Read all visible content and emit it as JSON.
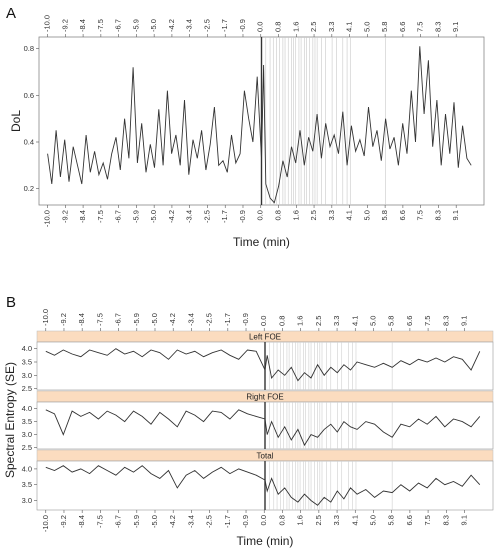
{
  "chart_data": [
    {
      "type": "line",
      "panel_label": "A",
      "xlabel": "Time (min)",
      "ylabel": "DoL",
      "xlim": [
        -10.4,
        10.4
      ],
      "ylim": [
        0.13,
        0.85
      ],
      "x_ticks": [
        "-10.0",
        "-9.2",
        "-8.4",
        "-7.5",
        "-6.7",
        "-5.9",
        "-5.0",
        "-4.2",
        "-3.4",
        "-2.5",
        "-1.7",
        "-0.9",
        "0.0",
        "0.8",
        "1.6",
        "2.5",
        "3.3",
        "4.1",
        "5.0",
        "5.8",
        "6.6",
        "7.5",
        "8.3",
        "9.1"
      ],
      "y_ticks": [
        "0.2",
        "0.4",
        "0.6",
        "0.8"
      ],
      "y_tick_values": [
        0.2,
        0.4,
        0.6,
        0.8
      ],
      "marker_lines": [
        0.0
      ],
      "event_lines": [
        0.2,
        0.4,
        0.55,
        0.7,
        0.85,
        1.0,
        1.1,
        1.25,
        1.4,
        1.5,
        1.6,
        1.75,
        1.85,
        2.0,
        2.1,
        2.25,
        2.4,
        2.5,
        2.6,
        2.8,
        3.0,
        3.3,
        3.5,
        3.8,
        4.0,
        4.15,
        5.8
      ],
      "series": [
        {
          "x": [
            -10.0,
            -9.8,
            -9.6,
            -9.4,
            -9.2,
            -9.0,
            -8.8,
            -8.6,
            -8.4,
            -8.2,
            -8.0,
            -7.8,
            -7.6,
            -7.4,
            -7.2,
            -7.0,
            -6.8,
            -6.6,
            -6.4,
            -6.2,
            -6.0,
            -5.8,
            -5.6,
            -5.4,
            -5.2,
            -5.0,
            -4.8,
            -4.6,
            -4.4,
            -4.2,
            -4.0,
            -3.8,
            -3.6,
            -3.4,
            -3.2,
            -3.0,
            -2.8,
            -2.6,
            -2.4,
            -2.2,
            -2.0,
            -1.8,
            -1.6,
            -1.4,
            -1.2,
            -1.0,
            -0.8,
            -0.6,
            -0.4,
            -0.2,
            0.0,
            0.1,
            0.2,
            0.4,
            0.6,
            0.8,
            1.0,
            1.2,
            1.4,
            1.6,
            1.8,
            2.0,
            2.2,
            2.4,
            2.6,
            2.8,
            3.0,
            3.2,
            3.4,
            3.6,
            3.8,
            4.0,
            4.2,
            4.4,
            4.6,
            4.8,
            5.0,
            5.2,
            5.4,
            5.6,
            5.8,
            6.0,
            6.2,
            6.4,
            6.6,
            6.8,
            7.0,
            7.2,
            7.4,
            7.6,
            7.8,
            8.0,
            8.2,
            8.4,
            8.6,
            8.8,
            9.0,
            9.2,
            9.4,
            9.6,
            9.8
          ],
          "values": [
            0.35,
            0.22,
            0.45,
            0.25,
            0.41,
            0.23,
            0.38,
            0.3,
            0.22,
            0.43,
            0.27,
            0.36,
            0.26,
            0.31,
            0.24,
            0.35,
            0.42,
            0.28,
            0.5,
            0.33,
            0.72,
            0.31,
            0.48,
            0.27,
            0.39,
            0.29,
            0.54,
            0.3,
            0.62,
            0.35,
            0.43,
            0.3,
            0.58,
            0.26,
            0.41,
            0.33,
            0.45,
            0.28,
            0.39,
            0.55,
            0.3,
            0.32,
            0.27,
            0.43,
            0.31,
            0.35,
            0.62,
            0.5,
            0.4,
            0.68,
            0.33,
            0.73,
            0.22,
            0.16,
            0.14,
            0.21,
            0.32,
            0.25,
            0.38,
            0.31,
            0.45,
            0.3,
            0.42,
            0.36,
            0.52,
            0.33,
            0.48,
            0.38,
            0.43,
            0.35,
            0.53,
            0.3,
            0.47,
            0.36,
            0.41,
            0.34,
            0.55,
            0.38,
            0.45,
            0.32,
            0.5,
            0.37,
            0.42,
            0.3,
            0.48,
            0.35,
            0.62,
            0.4,
            0.81,
            0.52,
            0.75,
            0.38,
            0.58,
            0.3,
            0.52,
            0.35,
            0.57,
            0.29,
            0.47,
            0.33,
            0.3
          ]
        }
      ]
    },
    {
      "type": "line",
      "panel_label": "B",
      "xlabel": "Time (min)",
      "ylabel": "Spectral Entropy (SE)",
      "xlim": [
        -10.4,
        10.4
      ],
      "ylim": [
        2.7,
        4.25
      ],
      "x_ticks": [
        "-10.0",
        "-9.2",
        "-8.4",
        "-7.5",
        "-6.7",
        "-5.9",
        "-5.0",
        "-4.2",
        "-3.4",
        "-2.5",
        "-1.7",
        "-0.9",
        "0.0",
        "0.8",
        "1.6",
        "2.5",
        "3.3",
        "4.1",
        "5.0",
        "5.8",
        "6.6",
        "7.5",
        "8.3",
        "9.1"
      ],
      "y_ticks": [
        "4.0",
        "3.5",
        "3.0",
        "2.5"
      ],
      "y_tick_values": [
        4.0,
        3.5,
        3.0,
        2.5
      ],
      "facets": [
        {
          "strip": "Left FOE",
          "ylim": [
            2.45,
            4.25
          ],
          "y_ticks": [
            "4.0",
            "3.5",
            "3.0",
            "2.5"
          ],
          "y_tick_values": [
            4.0,
            3.5,
            3.0,
            2.5
          ],
          "x": [
            -10.0,
            -9.6,
            -9.2,
            -8.8,
            -8.4,
            -8.0,
            -7.6,
            -7.2,
            -6.8,
            -6.4,
            -6.0,
            -5.6,
            -5.2,
            -4.8,
            -4.4,
            -4.0,
            -3.6,
            -3.2,
            -2.8,
            -2.4,
            -2.0,
            -1.6,
            -1.2,
            -0.8,
            -0.4,
            0.0,
            0.1,
            0.3,
            0.6,
            0.9,
            1.2,
            1.5,
            1.8,
            2.1,
            2.4,
            2.7,
            3.0,
            3.3,
            3.6,
            3.9,
            4.2,
            4.6,
            5.0,
            5.4,
            5.8,
            6.2,
            6.6,
            7.0,
            7.4,
            7.8,
            8.2,
            8.6,
            9.0,
            9.4,
            9.8
          ],
          "values": [
            3.9,
            3.75,
            3.95,
            3.8,
            3.7,
            3.95,
            3.85,
            3.75,
            4.0,
            3.8,
            3.9,
            3.7,
            3.95,
            3.85,
            3.6,
            3.95,
            3.8,
            3.9,
            3.7,
            3.85,
            3.95,
            3.75,
            3.6,
            3.95,
            3.9,
            3.2,
            3.75,
            2.9,
            3.2,
            3.0,
            3.3,
            2.8,
            3.1,
            2.9,
            3.4,
            3.0,
            3.3,
            3.1,
            3.4,
            3.2,
            3.5,
            3.4,
            3.3,
            3.45,
            3.3,
            3.55,
            3.4,
            3.6,
            3.5,
            3.65,
            3.5,
            3.7,
            3.6,
            3.2,
            3.9
          ]
        },
        {
          "strip": "Right FOE",
          "ylim": [
            2.45,
            4.25
          ],
          "y_ticks": [
            "4.0",
            "3.5",
            "3.0",
            "2.5"
          ],
          "y_tick_values": [
            4.0,
            3.5,
            3.0,
            2.5
          ],
          "x": [
            -10.0,
            -9.6,
            -9.2,
            -8.8,
            -8.4,
            -8.0,
            -7.6,
            -7.2,
            -6.8,
            -6.4,
            -6.0,
            -5.6,
            -5.2,
            -4.8,
            -4.4,
            -4.0,
            -3.6,
            -3.2,
            -2.8,
            -2.4,
            -2.0,
            -1.6,
            -1.2,
            -0.8,
            -0.4,
            0.0,
            0.1,
            0.3,
            0.6,
            0.9,
            1.2,
            1.5,
            1.8,
            2.1,
            2.4,
            2.7,
            3.0,
            3.3,
            3.6,
            3.9,
            4.2,
            4.6,
            5.0,
            5.4,
            5.8,
            6.2,
            6.6,
            7.0,
            7.4,
            7.8,
            8.2,
            8.6,
            9.0,
            9.4,
            9.8
          ],
          "values": [
            3.95,
            3.8,
            3.0,
            3.9,
            3.7,
            3.85,
            3.6,
            3.9,
            3.75,
            3.5,
            3.9,
            3.7,
            3.4,
            3.85,
            3.6,
            3.3,
            3.9,
            3.75,
            3.5,
            3.9,
            3.85,
            3.6,
            3.95,
            3.8,
            3.7,
            3.6,
            3.0,
            3.5,
            2.9,
            3.3,
            2.8,
            3.2,
            2.6,
            3.0,
            2.9,
            3.2,
            3.4,
            3.1,
            3.5,
            3.3,
            3.2,
            3.5,
            3.4,
            3.1,
            2.9,
            3.4,
            3.3,
            3.6,
            3.4,
            3.7,
            3.3,
            3.6,
            3.5,
            3.3,
            3.7
          ]
        },
        {
          "strip": "Total",
          "ylim": [
            2.7,
            4.25
          ],
          "y_ticks": [
            "4.0",
            "3.5",
            "3.0"
          ],
          "y_tick_values": [
            4.0,
            3.5,
            3.0
          ],
          "x": [
            -10.0,
            -9.6,
            -9.2,
            -8.8,
            -8.4,
            -8.0,
            -7.6,
            -7.2,
            -6.8,
            -6.4,
            -6.0,
            -5.6,
            -5.2,
            -4.8,
            -4.4,
            -4.0,
            -3.6,
            -3.2,
            -2.8,
            -2.4,
            -2.0,
            -1.6,
            -1.2,
            -0.8,
            -0.4,
            0.0,
            0.1,
            0.3,
            0.6,
            0.9,
            1.2,
            1.5,
            1.8,
            2.1,
            2.4,
            2.7,
            3.0,
            3.3,
            3.6,
            3.9,
            4.2,
            4.6,
            5.0,
            5.4,
            5.8,
            6.2,
            6.6,
            7.0,
            7.4,
            7.8,
            8.2,
            8.6,
            9.0,
            9.4,
            9.8
          ],
          "values": [
            4.05,
            3.95,
            4.1,
            3.9,
            4.0,
            3.85,
            4.1,
            3.95,
            3.8,
            4.05,
            3.9,
            4.1,
            3.85,
            3.7,
            3.95,
            3.4,
            3.8,
            3.95,
            3.7,
            3.9,
            4.05,
            3.85,
            4.0,
            3.9,
            3.8,
            3.65,
            3.3,
            3.7,
            3.2,
            3.4,
            3.1,
            2.95,
            3.2,
            3.0,
            2.85,
            3.1,
            2.95,
            3.3,
            3.05,
            3.4,
            3.2,
            3.35,
            3.1,
            3.3,
            3.25,
            3.5,
            3.3,
            3.55,
            3.4,
            3.7,
            3.5,
            3.6,
            3.45,
            3.8,
            3.5
          ]
        }
      ],
      "marker_lines": [
        0.0
      ],
      "event_lines": [
        0.2,
        0.4,
        0.55,
        0.7,
        0.85,
        1.0,
        1.1,
        1.25,
        1.4,
        1.5,
        1.6,
        1.75,
        1.85,
        2.0,
        2.1,
        2.25,
        2.4,
        2.5,
        2.6,
        2.8,
        3.0,
        3.3,
        3.5,
        3.8,
        4.0,
        4.15,
        5.8
      ],
      "strip_color": "#fbdcbf",
      "line_color": "#333333"
    }
  ]
}
